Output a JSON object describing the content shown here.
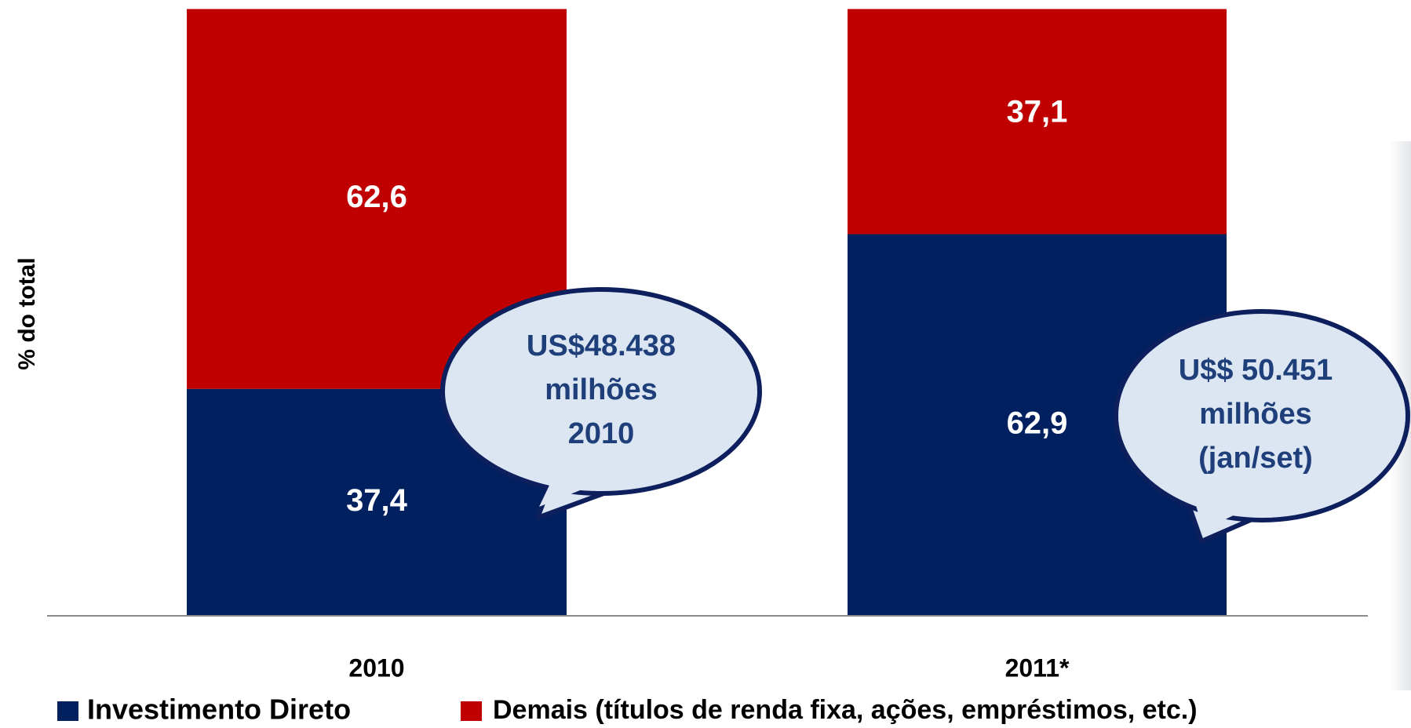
{
  "chart_data": {
    "type": "stacked_bar",
    "y_label": "% do total",
    "categories": [
      "2010",
      "2011*"
    ],
    "series": [
      {
        "name": "Investimento Direto",
        "color": "#002060",
        "values": [
          37.4,
          62.9
        ],
        "value_labels": [
          "37,4",
          "62,9"
        ]
      },
      {
        "name": "Demais (títulos de renda fixa, ações, empréstimos, etc.)",
        "color": "#c00000",
        "values": [
          62.6,
          37.1
        ],
        "value_labels": [
          "62,6",
          "37,1"
        ]
      }
    ],
    "ylim": [
      0,
      100
    ],
    "annotations": [
      {
        "lines": [
          "US$48.438",
          "milhões",
          "2010"
        ]
      },
      {
        "lines": [
          "U$$ 50.451",
          "milhões",
          "(jan/set)"
        ]
      }
    ]
  }
}
